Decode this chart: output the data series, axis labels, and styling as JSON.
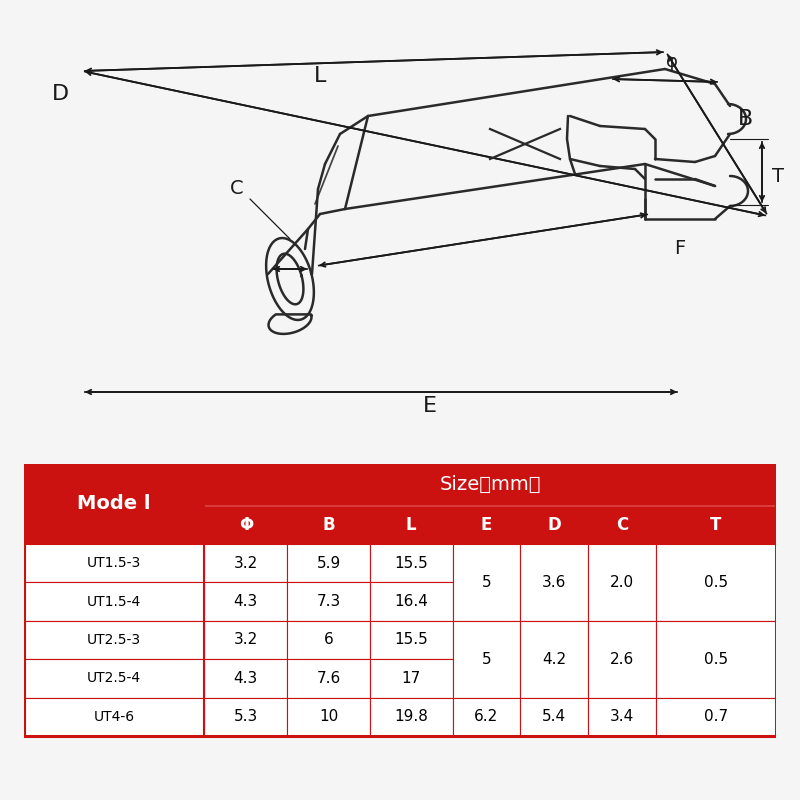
{
  "table_header_bg": "#cc1111",
  "table_header_text": "#ffffff",
  "table_border_color": "#cc1111",
  "table_data_bg": "#ffffff",
  "table_data_text": "#000000",
  "rows": [
    [
      "UT1.5-3",
      "3.2",
      "5.9",
      "15.5",
      "5",
      "3.6",
      "2.0",
      "0.5"
    ],
    [
      "UT1.5-4",
      "4.3",
      "7.3",
      "16.4",
      "5",
      "3.6",
      "2.0",
      "0.5"
    ],
    [
      "UT2.5-3",
      "3.2",
      "6",
      "15.5",
      "5",
      "4.2",
      "2.6",
      "0.5"
    ],
    [
      "UT2.5-4",
      "4.3",
      "7.6",
      "17",
      "5",
      "4.2",
      "2.6",
      "0.5"
    ],
    [
      "UT4-6",
      "5.3",
      "10",
      "19.8",
      "6.2",
      "5.4",
      "3.4",
      "0.7"
    ]
  ],
  "bg_color": "#f5f5f5"
}
